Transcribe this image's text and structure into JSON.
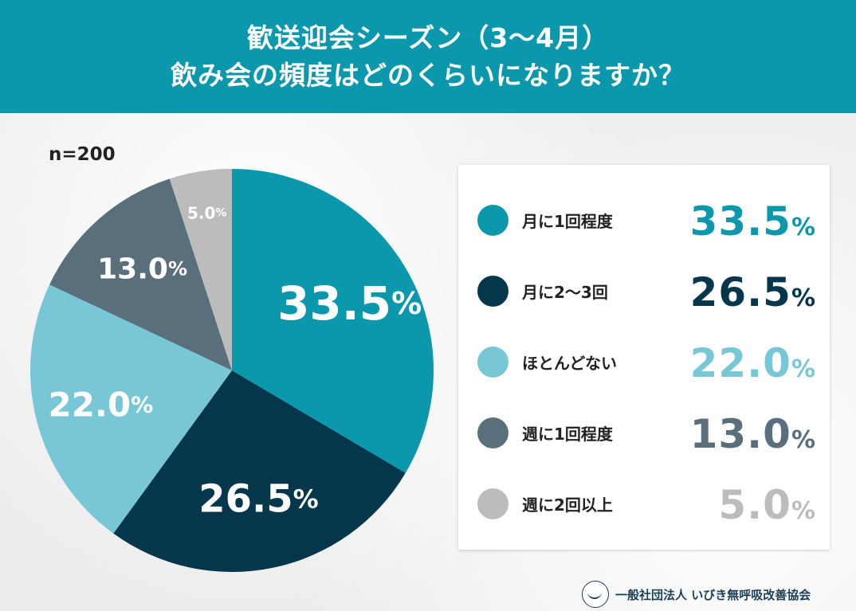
{
  "header": {
    "line1": "歓送迎会シーズン（3〜4月）",
    "line2": "飲み会の頻度はどのくらいになりますか？"
  },
  "sample_size": "n=200",
  "footer": {
    "org": "一般社団法人 いびき無呼吸改善協会",
    "logo_icon": "sleeping-face-icon"
  },
  "chart_data": {
    "type": "pie",
    "title": "歓送迎会シーズン（3〜4月） 飲み会の頻度はどのくらいになりますか？",
    "categories": [
      "月に1回程度",
      "月に2〜3回",
      "ほとんどない",
      "週に1回程度",
      "週に2回以上"
    ],
    "values": [
      33.5,
      26.5,
      22.0,
      13.0,
      5.0
    ],
    "labels": [
      "33.5",
      "26.5",
      "22.0",
      "13.0",
      "5.0"
    ],
    "unit": "%",
    "colors": [
      "#0b98ad",
      "#04364c",
      "#78c7d6",
      "#5a6f7c",
      "#bcbcbc"
    ],
    "legend_position": "right"
  }
}
